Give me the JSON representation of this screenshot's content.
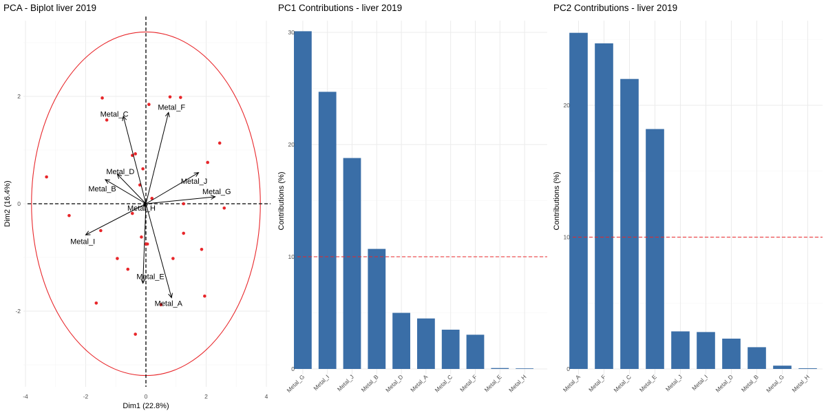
{
  "chart_data": [
    {
      "type": "scatter",
      "title": "PCA - Biplot liver 2019",
      "xlabel": "Dim1 (22.8%)",
      "ylabel": "Dim2 (16.4%)",
      "xlim": [
        -4,
        4
      ],
      "ylim": [
        -3,
        3
      ],
      "x_ticks": [
        -4,
        -2,
        0,
        2,
        4
      ],
      "y_ticks": [
        -2,
        0,
        2
      ],
      "grid": true,
      "point_color": "#e8262a",
      "ellipse_color": "#e8262a",
      "ellipse": {
        "cx": 0,
        "cy": 0,
        "rx": 3.8,
        "ry": 3.2
      },
      "points": [
        {
          "x": -3.3,
          "y": 0.5
        },
        {
          "x": -2.55,
          "y": -0.22
        },
        {
          "x": -1.45,
          "y": 1.97
        },
        {
          "x": -1.3,
          "y": 1.56
        },
        {
          "x": -1.5,
          "y": -0.5
        },
        {
          "x": -1.65,
          "y": -1.85
        },
        {
          "x": -0.95,
          "y": -1.02
        },
        {
          "x": -0.6,
          "y": -1.22
        },
        {
          "x": -0.35,
          "y": -2.43
        },
        {
          "x": -0.45,
          "y": 0.9
        },
        {
          "x": -0.35,
          "y": 0.93
        },
        {
          "x": -0.2,
          "y": 0.35
        },
        {
          "x": -0.1,
          "y": 0.65
        },
        {
          "x": -0.45,
          "y": -0.18
        },
        {
          "x": 0.1,
          "y": 1.85
        },
        {
          "x": 0.2,
          "y": 0.1
        },
        {
          "x": 0.0,
          "y": -0.75
        },
        {
          "x": -0.15,
          "y": -0.62
        },
        {
          "x": 0.05,
          "y": -0.75
        },
        {
          "x": 0.5,
          "y": -1.88
        },
        {
          "x": 0.8,
          "y": 1.99
        },
        {
          "x": 1.15,
          "y": 1.98
        },
        {
          "x": 0.9,
          "y": -1.02
        },
        {
          "x": 1.25,
          "y": 0.0
        },
        {
          "x": 1.25,
          "y": -0.55
        },
        {
          "x": 1.85,
          "y": -0.85
        },
        {
          "x": 1.95,
          "y": -1.72
        },
        {
          "x": 2.05,
          "y": 0.77
        },
        {
          "x": 2.45,
          "y": 1.13
        },
        {
          "x": 2.6,
          "y": -0.08
        }
      ],
      "vectors": [
        {
          "name": "Metal_C",
          "x": -0.75,
          "y": 1.63
        },
        {
          "name": "Metal_F",
          "x": 0.75,
          "y": 1.7
        },
        {
          "name": "Metal_D",
          "x": -0.95,
          "y": 0.55
        },
        {
          "name": "Metal_B",
          "x": -1.35,
          "y": 0.45
        },
        {
          "name": "Metal_J",
          "x": 1.75,
          "y": 0.58
        },
        {
          "name": "Metal_G",
          "x": 2.3,
          "y": 0.13
        },
        {
          "name": "Metal_H",
          "x": -0.08,
          "y": -0.05
        },
        {
          "name": "Metal_I",
          "x": -2.0,
          "y": -0.58
        },
        {
          "name": "Metal_E",
          "x": -0.1,
          "y": -1.48
        },
        {
          "name": "Metal_A",
          "x": 0.85,
          "y": -1.75
        }
      ],
      "vector_labels": [
        {
          "name": "Metal_C",
          "x": -1.05,
          "y": 1.67
        },
        {
          "name": "Metal_F",
          "x": 0.85,
          "y": 1.8
        },
        {
          "name": "Metal_D",
          "x": -0.85,
          "y": 0.6
        },
        {
          "name": "Metal_B",
          "x": -1.45,
          "y": 0.28
        },
        {
          "name": "Metal_J",
          "x": 1.6,
          "y": 0.42
        },
        {
          "name": "Metal_G",
          "x": 2.35,
          "y": 0.23
        },
        {
          "name": "Metal_H",
          "x": -0.15,
          "y": -0.08
        },
        {
          "name": "Metal_I",
          "x": -2.1,
          "y": -0.7
        },
        {
          "name": "Metal_E",
          "x": 0.15,
          "y": -1.35
        },
        {
          "name": "Metal_A",
          "x": 0.75,
          "y": -1.85
        }
      ]
    },
    {
      "type": "bar",
      "title": "PC1 Contributions - liver 2019",
      "xlabel": "",
      "ylabel": "Contributions (%)",
      "ylim": [
        0,
        30.5
      ],
      "y_ticks": [
        0,
        10,
        20,
        30
      ],
      "bar_color": "#3a6ea7",
      "reference_line": 10,
      "reference_color": "#e8262a",
      "categories": [
        "Metal_G",
        "Metal_I",
        "Metal_J",
        "Metal_B",
        "Metal_D",
        "Metal_A",
        "Metal_C",
        "Metal_F",
        "Metal_E",
        "Metal_H"
      ],
      "values": [
        30.1,
        24.7,
        18.8,
        10.7,
        5.0,
        4.5,
        3.5,
        3.05,
        0.08,
        0.05
      ]
    },
    {
      "type": "bar",
      "title": "PC2 Contributions - liver 2019",
      "xlabel": "",
      "ylabel": "Contributions (%)",
      "ylim": [
        0,
        25.5
      ],
      "y_ticks": [
        0,
        10,
        20
      ],
      "bar_color": "#3a6ea7",
      "reference_line": 10,
      "reference_color": "#e8262a",
      "categories": [
        "Metal_A",
        "Metal_F",
        "Metal_C",
        "Metal_E",
        "Metal_J",
        "Metal_I",
        "Metal_D",
        "Metal_B",
        "Metal_G",
        "Metal_H"
      ],
      "values": [
        25.5,
        24.7,
        22.0,
        18.2,
        2.85,
        2.8,
        2.3,
        1.65,
        0.25,
        0.05
      ]
    }
  ]
}
